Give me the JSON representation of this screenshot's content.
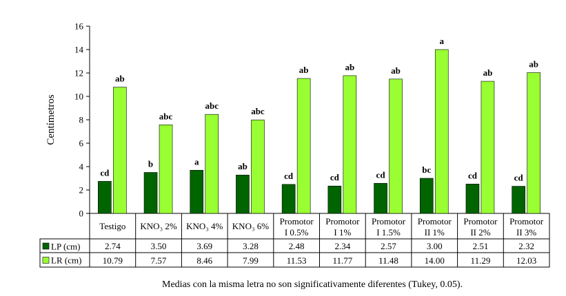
{
  "chart_data": {
    "type": "bar",
    "ylabel": "Centímetros",
    "ylim": [
      0,
      16
    ],
    "yticks": [
      0,
      2,
      4,
      6,
      8,
      10,
      12,
      14,
      16
    ],
    "categories": [
      [
        "Testigo"
      ],
      [
        "KNO₃ 2%"
      ],
      [
        "KNO₃ 4%"
      ],
      [
        "KNO₃ 6%"
      ],
      [
        "Promotor",
        "I 0.5%"
      ],
      [
        "Promotor",
        "I 1%"
      ],
      [
        "Promotor",
        "I 1.5%"
      ],
      [
        "Promotor",
        "II 1%"
      ],
      [
        "Promotor",
        "II 2%"
      ],
      [
        "Promotor",
        "II 3%"
      ]
    ],
    "series": [
      {
        "name": "LP (cm)",
        "color": "#006400",
        "values": [
          2.74,
          3.5,
          3.69,
          3.28,
          2.48,
          2.34,
          2.57,
          3.0,
          2.51,
          2.32
        ],
        "display": [
          "2.74",
          "3.50",
          "3.69",
          "3.28",
          "2.48",
          "2.34",
          "2.57",
          "3.00",
          "2.51",
          "2.32"
        ],
        "letters": [
          "cd",
          "b",
          "a",
          "ab",
          "cd",
          "cd",
          "cd",
          "bc",
          "cd",
          "cd"
        ]
      },
      {
        "name": "LR (cm)",
        "color": "#99ff33",
        "values": [
          10.79,
          7.57,
          8.46,
          7.99,
          11.53,
          11.77,
          11.48,
          14.0,
          11.29,
          12.03
        ],
        "display": [
          "10.79",
          "7.57",
          "8.46",
          "7.99",
          "11.53",
          "11.77",
          "11.48",
          "14.00",
          "11.29",
          "12.03"
        ],
        "letters": [
          "ab",
          "abc",
          "abc",
          "abc",
          "ab",
          "ab",
          "ab",
          "a",
          "ab",
          "ab"
        ]
      }
    ],
    "caption": "Medias con la misma letra no son significativamente diferentes (Tukey, 0.05)."
  }
}
